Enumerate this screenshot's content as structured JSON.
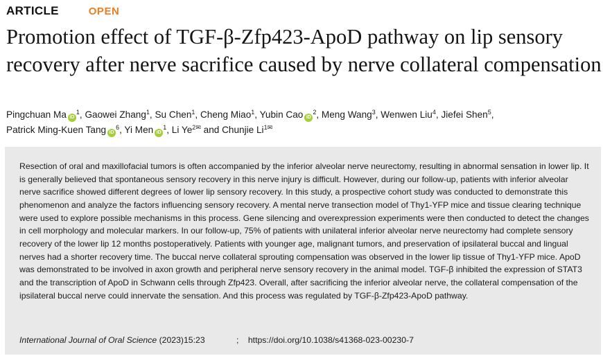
{
  "header": {
    "article_label": "ARTICLE",
    "open_label": "OPEN"
  },
  "title": "Promotion effect of TGF-β-Zfp423-ApoD pathway on lip sensory recovery after nerve sacrifice caused by nerve collateral compensation",
  "authors": [
    {
      "name": "Pingchuan Ma",
      "orcid": true,
      "aff": "1",
      "corresponding": false,
      "sep": ", "
    },
    {
      "name": "Gaowei Zhang",
      "orcid": false,
      "aff": "1",
      "corresponding": false,
      "sep": ", "
    },
    {
      "name": "Su Chen",
      "orcid": false,
      "aff": "1",
      "corresponding": false,
      "sep": ", "
    },
    {
      "name": "Cheng Miao",
      "orcid": false,
      "aff": "1",
      "corresponding": false,
      "sep": ", "
    },
    {
      "name": "Yubin Cao",
      "orcid": true,
      "aff": "2",
      "corresponding": false,
      "sep": ", "
    },
    {
      "name": "Meng Wang",
      "orcid": false,
      "aff": "3",
      "corresponding": false,
      "sep": ", "
    },
    {
      "name": "Wenwen Liu",
      "orcid": false,
      "aff": "4",
      "corresponding": false,
      "sep": ", "
    },
    {
      "name": "Jiefei Shen",
      "orcid": false,
      "aff": "5",
      "corresponding": false,
      "sep": ", "
    },
    {
      "name": "Patrick Ming-Kuen Tang",
      "orcid": true,
      "aff": "6",
      "corresponding": false,
      "sep": ", "
    },
    {
      "name": "Yi Men",
      "orcid": true,
      "aff": "1",
      "corresponding": false,
      "sep": ", "
    },
    {
      "name": "Li Ye",
      "orcid": false,
      "aff": "2",
      "corresponding": true,
      "sep": " and "
    },
    {
      "name": "Chunjie Li",
      "orcid": false,
      "aff": "1",
      "corresponding": true,
      "sep": ""
    }
  ],
  "abstract": "Resection of oral and maxillofacial tumors is often accompanied by the inferior alveolar nerve neurectomy, resulting in abnormal sensation in lower lip. It is generally believed that spontaneous sensory recovery in this nerve injury is difficult. However, during our follow-up, patients with inferior alveolar nerve sacrifice showed different degrees of lower lip sensory recovery. In this study, a prospective cohort study was conducted to demonstrate this phenomenon and analyze the factors influencing sensory recovery. A mental nerve transection model of Thy1-YFP mice and tissue clearing technique were used to explore possible mechanisms in this process. Gene silencing and overexpression experiments were then conducted to detect the changes in cell morphology and molecular markers. In our follow-up, 75% of patients with unilateral inferior alveolar nerve neurectomy had complete sensory recovery of the lower lip 12 months postoperatively. Patients with younger age, malignant tumors, and preservation of ipsilateral buccal and lingual nerves had a shorter recovery time. The buccal nerve collateral sprouting compensation was observed in the lower lip tissue of Thy1-YFP mice. ApoD was demonstrated to be involved in axon growth and peripheral nerve sensory recovery in the animal model. TGF-β inhibited the expression of STAT3 and the transcription of ApoD in Schwann cells through Zfp423. Overall, after sacrificing the inferior alveolar nerve, the collateral compensation of the ipsilateral buccal nerve could innervate the sensation. And this process was regulated by TGF-β-Zfp423-ApoD pathway.",
  "citation": {
    "journal": "International Journal of Oral Science",
    "year_volume": "(2023)15:23",
    "separator": ";",
    "doi": "https://doi.org/10.1038/s41368-023-00230-7"
  },
  "icons": {
    "orcid": "orcid-icon",
    "orcid_text": "iD",
    "mail": "envelope-icon",
    "mail_glyph": "✉"
  },
  "colors": {
    "open_accent": "#f07d1e",
    "abstract_background": "#e9e9e9",
    "orcid_green": "#a6ce39"
  }
}
